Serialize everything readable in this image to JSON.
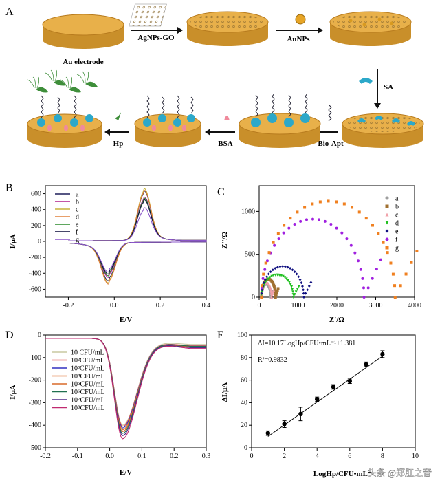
{
  "panel_labels": [
    "A",
    "B",
    "C",
    "D",
    "E"
  ],
  "schematic": {
    "electrode_label": "Au electrode",
    "steps": [
      "AgNPs-GO",
      "AuNPs",
      "SA",
      "Bio-Apt",
      "BSA",
      "Hp"
    ]
  },
  "watermark": "头条 @郑肛之音",
  "colors": {
    "gold": "#E2A63A",
    "gold_dark": "#B77B1E",
    "cyan": "#2CA8C9",
    "pink": "#F08A9C",
    "green": "#3E8E3A"
  },
  "chart_data": [
    {
      "type": "line",
      "title": "",
      "xlabel": "E/V",
      "ylabel": "I/μA",
      "xlim": [
        -0.3,
        0.4
      ],
      "ylim": [
        -700,
        700
      ],
      "xticks": [
        "-0.2",
        "0.0",
        "0.2",
        "0.4"
      ],
      "yticks": [
        "-600",
        "-400",
        "-200",
        "0",
        "200",
        "400",
        "600"
      ],
      "legend_position": "top-left",
      "series": [
        {
          "name": "a",
          "color": "#1f1f5a",
          "anodic_peak": 590,
          "cathodic_peak": -440
        },
        {
          "name": "b",
          "color": "#b01f8a",
          "anodic_peak": 515,
          "cathodic_peak": -395
        },
        {
          "name": "c",
          "color": "#c8b43a",
          "anodic_peak": 620,
          "cathodic_peak": -465
        },
        {
          "name": "d",
          "color": "#e0813a",
          "anodic_peak": 600,
          "cathodic_peak": -480
        },
        {
          "name": "e",
          "color": "#2a8a2a",
          "anodic_peak": 500,
          "cathodic_peak": -375
        },
        {
          "name": "f",
          "color": "#0a0a3a",
          "anodic_peak": 480,
          "cathodic_peak": -355
        },
        {
          "name": "g",
          "color": "#8a55c8",
          "anodic_peak": 380,
          "cathodic_peak": -330
        }
      ]
    },
    {
      "type": "scatter",
      "title": "",
      "xlabel": "Z'/Ω",
      "ylabel": "-Z''/Ω",
      "xlim": [
        0,
        4000
      ],
      "ylim": [
        0,
        1300
      ],
      "xticks": [
        "0",
        "1000",
        "2000",
        "3000",
        "4000"
      ],
      "yticks": [
        "0",
        "500",
        "1000"
      ],
      "legend_position": "top-right",
      "series": [
        {
          "name": "a",
          "color": "#9e9e9e",
          "marker": "circle",
          "rct": 300,
          "peak": 150
        },
        {
          "name": "b",
          "color": "#a07030",
          "marker": "square",
          "rct": 420,
          "peak": 210
        },
        {
          "name": "c",
          "color": "#f0a0a8",
          "marker": "triangle-up",
          "rct": 320,
          "peak": 170
        },
        {
          "name": "d",
          "color": "#20c020",
          "marker": "triangle-down",
          "rct": 880,
          "peak": 260
        },
        {
          "name": "e",
          "color": "#101080",
          "marker": "diamond",
          "rct": 1150,
          "peak": 360
        },
        {
          "name": "f",
          "color": "#a020e0",
          "marker": "circle",
          "rct": 2700,
          "peak": 910
        },
        {
          "name": "g",
          "color": "#f08020",
          "marker": "square",
          "rct": 3500,
          "peak": 1120
        }
      ]
    },
    {
      "type": "line",
      "title": "",
      "xlabel": "E/V",
      "ylabel": "I/μA",
      "xlim": [
        -0.2,
        0.3
      ],
      "ylim": [
        -500,
        0
      ],
      "xticks": [
        "-0.2",
        "-0.1",
        "0.0",
        "0.1",
        "0.2",
        "0.3"
      ],
      "yticks": [
        "-500",
        "-400",
        "-300",
        "-200",
        "-100",
        "0"
      ],
      "legend_position": "top-left",
      "series": [
        {
          "name": "10 CFU/mL",
          "color": "#c8c8a0",
          "peak_current": -400,
          "tail": -42
        },
        {
          "name": "10²CFU/mL",
          "color": "#e05050",
          "peak_current": -405,
          "tail": -48
        },
        {
          "name": "10³CFU/mL",
          "color": "#3030c0",
          "peak_current": -412,
          "tail": -50
        },
        {
          "name": "10⁴CFU/mL",
          "color": "#e07030",
          "peak_current": -420,
          "tail": -52
        },
        {
          "name": "10⁵CFU/mL",
          "color": "#d86a2a",
          "peak_current": -428,
          "tail": -54
        },
        {
          "name": "10⁶CFU/mL",
          "color": "#207050",
          "peak_current": -436,
          "tail": -50
        },
        {
          "name": "10⁷CFU/mL",
          "color": "#502a8a",
          "peak_current": -446,
          "tail": -56
        },
        {
          "name": "10⁸CFU/mL",
          "color": "#c02a70",
          "peak_current": -460,
          "tail": -60
        }
      ]
    },
    {
      "type": "scatter",
      "title": "",
      "xlabel": "LogHp/CFU•mL⁻¹",
      "ylabel": "ΔI/μA",
      "xlim": [
        0,
        10
      ],
      "ylim": [
        0,
        100
      ],
      "xticks": [
        "0",
        "2",
        "4",
        "6",
        "8",
        "10"
      ],
      "yticks": [
        "0",
        "20",
        "40",
        "60",
        "80",
        "100"
      ],
      "equation": "ΔI=10.17LogHp/CFU•mL⁻¹+1.381",
      "r2": "R²=0.9832",
      "fit": {
        "slope": 10.17,
        "intercept": 1.381
      },
      "points": [
        {
          "x": 1,
          "y": 13,
          "err": 2
        },
        {
          "x": 2,
          "y": 21,
          "err": 3
        },
        {
          "x": 3,
          "y": 30,
          "err": 6
        },
        {
          "x": 4,
          "y": 43,
          "err": 2
        },
        {
          "x": 5,
          "y": 54,
          "err": 2
        },
        {
          "x": 6,
          "y": 59,
          "err": 2
        },
        {
          "x": 7,
          "y": 74,
          "err": 2
        },
        {
          "x": 8,
          "y": 83,
          "err": 3
        }
      ]
    }
  ]
}
